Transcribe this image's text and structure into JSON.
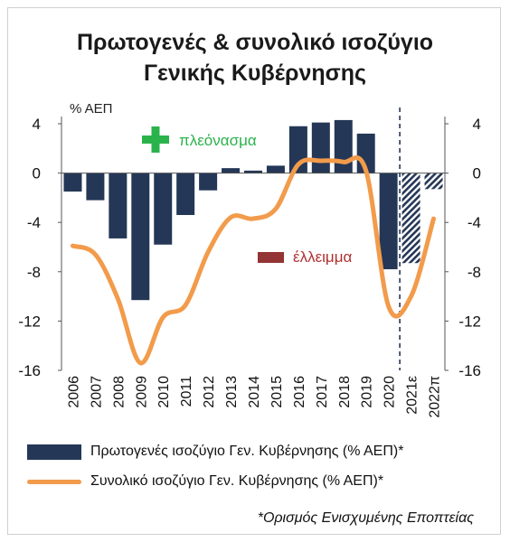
{
  "title_line1": "Πρωτογενές & συνολικό ισοζύγιο",
  "title_line2": "Γενικής Κυβέρνησης",
  "footnote": "*Ορισμός Ενισχυμένης Εποπτείας",
  "annotations": {
    "surplus": "πλεόνασμα",
    "deficit": "έλλειμμα"
  },
  "colors": {
    "primary_bar": "#253756",
    "total_line": "#f29b4b",
    "surplus_icon": "#2ab34b",
    "deficit_icon": "#943434"
  },
  "chart_data": {
    "type": "bar",
    "categories": [
      "2006",
      "2007",
      "2008",
      "2009",
      "2010",
      "2011",
      "2012",
      "2013",
      "2014",
      "2015",
      "2016",
      "2017",
      "2018",
      "2019",
      "2020",
      "2021ε",
      "2022π"
    ],
    "ylabel": "% ΑΕΠ",
    "ylim": [
      -16,
      4
    ],
    "yticks": [
      4,
      0,
      -4,
      -8,
      -12,
      -16
    ],
    "series": [
      {
        "name": "Πρωτογενές ισοζύγιο Γεν. Κυβέρνησης (% ΑΕΠ)*",
        "type": "bar",
        "values": [
          -1.5,
          -2.2,
          -5.3,
          -10.3,
          -5.8,
          -3.4,
          -1.4,
          0.4,
          0.2,
          0.6,
          3.8,
          4.1,
          4.3,
          3.2,
          -7.8,
          -7.3,
          -1.3
        ],
        "projected_from_index": 15
      },
      {
        "name": "Συνολικό ισοζύγιο Γεν. Κυβέρνησης (% ΑΕΠ)*",
        "type": "line",
        "values": [
          -5.9,
          -6.6,
          -10.2,
          -15.4,
          -11.7,
          -10.7,
          -6.4,
          -3.6,
          -3.7,
          -2.9,
          0.7,
          1.0,
          0.9,
          0.2,
          -10.8,
          -10.0,
          -3.7
        ]
      }
    ],
    "grid": false,
    "legend_position": "bottom"
  }
}
